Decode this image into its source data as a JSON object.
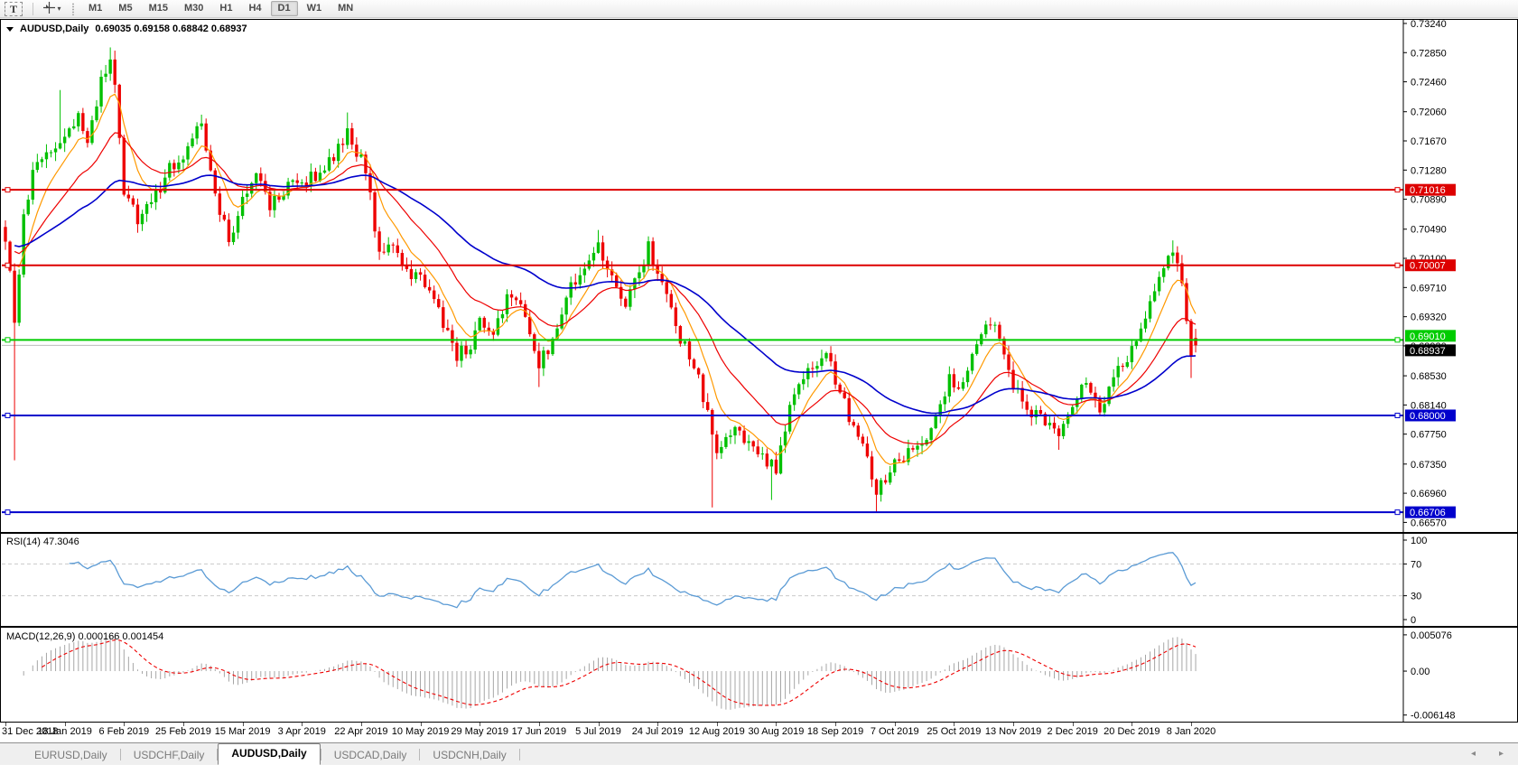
{
  "toolbar": {
    "text_tool_label": "T",
    "cursor_caret": "▾",
    "timeframes": [
      {
        "label": "M1",
        "active": false
      },
      {
        "label": "M5",
        "active": false
      },
      {
        "label": "M15",
        "active": false
      },
      {
        "label": "M30",
        "active": false
      },
      {
        "label": "H1",
        "active": false
      },
      {
        "label": "H4",
        "active": false
      },
      {
        "label": "D1",
        "active": true
      },
      {
        "label": "W1",
        "active": false
      },
      {
        "label": "MN",
        "active": false
      }
    ]
  },
  "chart_window": {
    "title_symbol": "AUDUSD,Daily",
    "title_ohlc": "0.69035 0.69158 0.68842 0.68937"
  },
  "chart_data": {
    "type": "candlestick",
    "symbol": "AUDUSD",
    "timeframe": "Daily",
    "ohlc_current": {
      "open": 0.69035,
      "high": 0.69158,
      "low": 0.68842,
      "close": 0.68937
    },
    "bars": 262,
    "price_axis": {
      "max": 0.733,
      "min": 0.6643,
      "ticks": [
        "0.73240",
        "0.72850",
        "0.72460",
        "0.72060",
        "0.71670",
        "0.71280",
        "0.70890",
        "0.70490",
        "0.70100",
        "0.69710",
        "0.69320",
        "0.68930",
        "0.68530",
        "0.68140",
        "0.67750",
        "0.67350",
        "0.66960",
        "0.66570"
      ]
    },
    "levels": [
      {
        "price": 0.71016,
        "label": "0.71016",
        "color": "#dd0000"
      },
      {
        "price": 0.70007,
        "label": "0.70007",
        "color": "#dd0000"
      },
      {
        "price": 0.6901,
        "label": "0.69010",
        "color": "#00cc00"
      },
      {
        "price": 0.68,
        "label": "0.68000",
        "color": "#0000cc"
      },
      {
        "price": 0.66706,
        "label": "0.66706",
        "color": "#0000cc"
      }
    ],
    "current_price": {
      "value": 0.68937,
      "label": "0.68937",
      "line_color": "#bdbdbd",
      "badge_bg": "#000000"
    },
    "candle_up_color": "#00c000",
    "candle_down_color": "#ee0000",
    "moving_averages": [
      {
        "period": 8,
        "color": "#ff9900"
      },
      {
        "period": 21,
        "color": "#ee0000"
      },
      {
        "period": 55,
        "color": "#0000cc"
      }
    ],
    "close_path_anchors": [
      [
        0,
        0.704
      ],
      [
        2,
        0.693
      ],
      [
        4,
        0.706
      ],
      [
        6,
        0.712
      ],
      [
        9,
        0.715
      ],
      [
        13,
        0.717
      ],
      [
        16,
        0.72
      ],
      [
        18,
        0.716
      ],
      [
        21,
        0.7245
      ],
      [
        23,
        0.727
      ],
      [
        24,
        0.724
      ],
      [
        26,
        0.71
      ],
      [
        29,
        0.706
      ],
      [
        33,
        0.7095
      ],
      [
        36,
        0.713
      ],
      [
        39,
        0.715
      ],
      [
        43,
        0.719
      ],
      [
        46,
        0.709
      ],
      [
        49,
        0.7035
      ],
      [
        52,
        0.709
      ],
      [
        55,
        0.713
      ],
      [
        58,
        0.708
      ],
      [
        62,
        0.7105
      ],
      [
        65,
        0.711
      ],
      [
        70,
        0.713
      ],
      [
        75,
        0.7175
      ],
      [
        78,
        0.714
      ],
      [
        80,
        0.709
      ],
      [
        82,
        0.7015
      ],
      [
        85,
        0.7035
      ],
      [
        88,
        0.699
      ],
      [
        91,
        0.6985
      ],
      [
        95,
        0.694
      ],
      [
        99,
        0.688
      ],
      [
        102,
        0.6895
      ],
      [
        104,
        0.6925
      ],
      [
        107,
        0.6905
      ],
      [
        110,
        0.696
      ],
      [
        114,
        0.6935
      ],
      [
        117,
        0.687
      ],
      [
        120,
        0.6895
      ],
      [
        123,
        0.696
      ],
      [
        126,
        0.699
      ],
      [
        130,
        0.703
      ],
      [
        133,
        0.698
      ],
      [
        136,
        0.6945
      ],
      [
        139,
        0.699
      ],
      [
        141,
        0.7025
      ],
      [
        145,
        0.696
      ],
      [
        148,
        0.69
      ],
      [
        151,
        0.687
      ],
      [
        154,
        0.68
      ],
      [
        156,
        0.6745
      ],
      [
        160,
        0.6785
      ],
      [
        164,
        0.6755
      ],
      [
        169,
        0.673
      ],
      [
        172,
        0.681
      ],
      [
        176,
        0.686
      ],
      [
        180,
        0.6885
      ],
      [
        182,
        0.685
      ],
      [
        185,
        0.68
      ],
      [
        188,
        0.677
      ],
      [
        191,
        0.67
      ],
      [
        195,
        0.6735
      ],
      [
        199,
        0.6755
      ],
      [
        203,
        0.678
      ],
      [
        207,
        0.685
      ],
      [
        209,
        0.684
      ],
      [
        212,
        0.688
      ],
      [
        216,
        0.6929
      ],
      [
        219,
        0.689
      ],
      [
        221,
        0.684
      ],
      [
        225,
        0.6805
      ],
      [
        228,
        0.679
      ],
      [
        231,
        0.677
      ],
      [
        234,
        0.682
      ],
      [
        237,
        0.685
      ],
      [
        240,
        0.6805
      ],
      [
        243,
        0.686
      ],
      [
        246,
        0.688
      ],
      [
        248,
        0.6905
      ],
      [
        251,
        0.695
      ],
      [
        254,
        0.699
      ],
      [
        256,
        0.7025
      ],
      [
        258,
        0.6985
      ],
      [
        260,
        0.688
      ],
      [
        261,
        0.68937
      ]
    ],
    "spikes_low": [
      [
        2,
        0.674
      ],
      [
        99,
        0.6865
      ],
      [
        117,
        0.6838
      ],
      [
        155,
        0.6677
      ],
      [
        168,
        0.6687
      ],
      [
        191,
        0.667
      ],
      [
        231,
        0.6754
      ],
      [
        260,
        0.685
      ]
    ],
    "spikes_high": [
      [
        12,
        0.7235
      ],
      [
        23,
        0.7292
      ],
      [
        75,
        0.7205
      ],
      [
        130,
        0.7048
      ],
      [
        216,
        0.6931
      ],
      [
        256,
        0.7034
      ]
    ],
    "date_labels": [
      "31 Dec 2018",
      "18 Jan 2019",
      "6 Feb 2019",
      "25 Feb 2019",
      "15 Mar 2019",
      "3 Apr 2019",
      "22 Apr 2019",
      "10 May 2019",
      "29 May 2019",
      "17 Jun 2019",
      "5 Jul 2019",
      "24 Jul 2019",
      "12 Aug 2019",
      "30 Aug 2019",
      "18 Sep 2019",
      "7 Oct 2019",
      "25 Oct 2019",
      "13 Nov 2019",
      "2 Dec 2019",
      "20 Dec 2019",
      "8 Jan 2020"
    ],
    "indicators": {
      "rsi": {
        "label": "RSI(14) 47.3046",
        "period": 14,
        "value": 47.3046,
        "line_color": "#5b9bd5",
        "level_lines": [
          70,
          30
        ],
        "axis_ticks": [
          {
            "v": 100,
            "label": "100"
          },
          {
            "v": 70,
            "label": "70"
          },
          {
            "v": 30,
            "label": "30"
          },
          {
            "v": 0,
            "label": "0"
          }
        ]
      },
      "macd": {
        "label": "MACD(12,26,9) 0.000166 0.001454",
        "fast": 12,
        "slow": 26,
        "signal": 9,
        "main_value": 0.000166,
        "signal_value": 0.001454,
        "histogram_color": "#a6a6a6",
        "signal_color": "#ee0000",
        "axis": {
          "top": 0.0062,
          "bottom": -0.0072
        },
        "axis_ticks": [
          {
            "v": 0.005076,
            "label": "0.005076"
          },
          {
            "v": 0,
            "label": "0.00"
          },
          {
            "v": -0.006148,
            "label": "-0.006148"
          }
        ]
      }
    }
  },
  "tabs": {
    "items": [
      {
        "label": "EURUSD,Daily",
        "active": false
      },
      {
        "label": "USDCHF,Daily",
        "active": false
      },
      {
        "label": "AUDUSD,Daily",
        "active": true
      },
      {
        "label": "USDCAD,Daily",
        "active": false
      },
      {
        "label": "USDCNH,Daily",
        "active": false
      }
    ],
    "scroll_left": "◂",
    "scroll_right": "▸"
  }
}
